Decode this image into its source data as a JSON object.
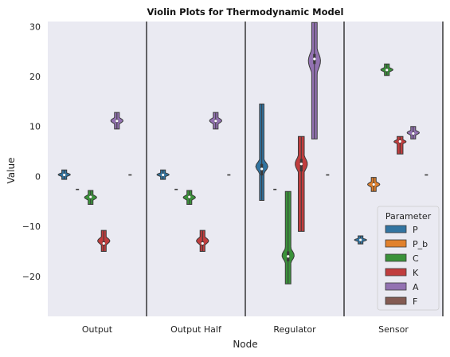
{
  "chart_data": {
    "type": "violin",
    "title": "Violin Plots for Thermodynamic Model",
    "xlabel": "Node",
    "ylabel": "Value",
    "ylim": [
      -28,
      31
    ],
    "yticks": [
      -20,
      -10,
      0,
      10,
      20,
      30
    ],
    "ytick_labels": [
      "−20",
      "−10",
      "0",
      "10",
      "20",
      "30"
    ],
    "categories": [
      "Output",
      "Output Half",
      "Regulator",
      "Sensor"
    ],
    "grid": false,
    "legend": {
      "title": "Parameter",
      "placement": "bottom-right"
    },
    "series": [
      {
        "name": "P",
        "color": "#3274a1",
        "values": [
          {
            "median": 0.3,
            "min": -0.6,
            "max": 1.3,
            "q1": 0.1,
            "q3": 0.5,
            "shape": "narrow"
          },
          {
            "median": 0.3,
            "min": -0.6,
            "max": 1.3,
            "q1": 0.1,
            "q3": 0.5,
            "shape": "narrow"
          },
          {
            "median": 1.5,
            "min": -4.8,
            "max": 14.5,
            "q1": 0.2,
            "q3": 2.5,
            "shape": "regulator-p"
          },
          {
            "median": -12.7,
            "min": -13.5,
            "max": -11.9,
            "q1": -12.9,
            "q3": -12.5,
            "shape": "narrow"
          }
        ]
      },
      {
        "name": "P_b",
        "color": "#e1812c",
        "values": [
          {
            "median": -2.6,
            "min": -2.6,
            "max": -2.6,
            "q1": -2.6,
            "q3": -2.6,
            "shape": "flat"
          },
          {
            "median": -2.6,
            "min": -2.6,
            "max": -2.6,
            "q1": -2.6,
            "q3": -2.6,
            "shape": "flat"
          },
          {
            "median": -2.6,
            "min": -2.6,
            "max": -2.6,
            "q1": -2.6,
            "q3": -2.6,
            "shape": "flat"
          },
          {
            "median": -1.6,
            "min": -3.0,
            "max": -0.2,
            "q1": -1.9,
            "q3": -1.3,
            "shape": "narrow"
          }
        ]
      },
      {
        "name": "C",
        "color": "#3a923a",
        "values": [
          {
            "median": -4.1,
            "min": -5.6,
            "max": -2.8,
            "q1": -4.4,
            "q3": -3.8,
            "shape": "narrow"
          },
          {
            "median": -4.1,
            "min": -5.6,
            "max": -2.8,
            "q1": -4.4,
            "q3": -3.8,
            "shape": "narrow"
          },
          {
            "median": -16.0,
            "min": -21.5,
            "max": -3.0,
            "q1": -17.0,
            "q3": -15.0,
            "shape": "regulator-c"
          },
          {
            "median": 21.3,
            "min": 20.2,
            "max": 22.5,
            "q1": 21.0,
            "q3": 21.6,
            "shape": "narrow"
          }
        ]
      },
      {
        "name": "K",
        "color": "#c03d3e",
        "values": [
          {
            "median": -13.4,
            "min": -15.0,
            "max": -10.8,
            "q1": -13.8,
            "q3": -13.0,
            "shape": "narrow"
          },
          {
            "median": -13.4,
            "min": -15.0,
            "max": -10.8,
            "q1": -13.8,
            "q3": -13.0,
            "shape": "narrow"
          },
          {
            "median": 2.5,
            "min": -11.0,
            "max": 8.0,
            "q1": 1.0,
            "q3": 3.5,
            "shape": "regulator-k"
          },
          {
            "median": 7.0,
            "min": 4.5,
            "max": 8.0,
            "q1": 6.7,
            "q3": 7.3,
            "shape": "sensor-k"
          }
        ]
      },
      {
        "name": "A",
        "color": "#9372b2",
        "values": [
          {
            "median": 11.1,
            "min": 9.5,
            "max": 12.8,
            "q1": 10.8,
            "q3": 11.4,
            "shape": "narrow"
          },
          {
            "median": 11.1,
            "min": 9.5,
            "max": 12.8,
            "q1": 10.8,
            "q3": 11.4,
            "shape": "narrow"
          },
          {
            "median": 23.5,
            "min": 7.5,
            "max": 30.8,
            "q1": 22.5,
            "q3": 24.5,
            "shape": "regulator-a"
          },
          {
            "median": 8.6,
            "min": 7.5,
            "max": 10.0,
            "q1": 8.3,
            "q3": 8.9,
            "shape": "narrow"
          }
        ]
      },
      {
        "name": "F",
        "color": "#845b53",
        "values": [
          {
            "median": 0.3,
            "min": 0.3,
            "max": 0.3,
            "q1": 0.3,
            "q3": 0.3,
            "shape": "flat"
          },
          {
            "median": 0.3,
            "min": 0.3,
            "max": 0.3,
            "q1": 0.3,
            "q3": 0.3,
            "shape": "flat"
          },
          {
            "median": 0.3,
            "min": 0.3,
            "max": 0.3,
            "q1": 0.3,
            "q3": 0.3,
            "shape": "flat"
          },
          {
            "median": 0.3,
            "min": 0.3,
            "max": 0.3,
            "q1": 0.3,
            "q3": 0.3,
            "shape": "flat"
          }
        ]
      }
    ]
  }
}
